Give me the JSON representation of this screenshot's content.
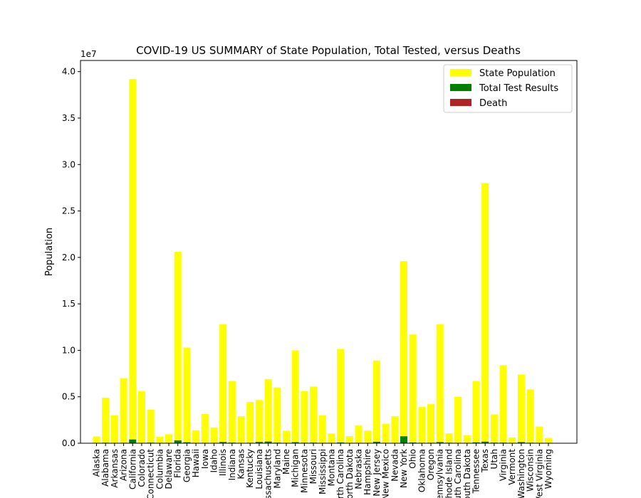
{
  "chart_data": {
    "type": "bar",
    "title": "COVID-19 US SUMMARY of State Population, Total Tested, versus Deaths",
    "xlabel": "",
    "ylabel": "Population",
    "y_offset_label": "1e7",
    "ylim": [
      0,
      41200000
    ],
    "yticks": [
      0,
      5000000,
      10000000,
      15000000,
      20000000,
      25000000,
      30000000,
      35000000,
      40000000
    ],
    "ytick_labels": [
      "0.0",
      "0.5",
      "1.0",
      "1.5",
      "2.0",
      "2.5",
      "3.0",
      "3.5",
      "4.0"
    ],
    "legend_position": "upper right",
    "categories": [
      "Alaska",
      "Alabama",
      "Arkansas",
      "Arizona",
      "California",
      "Colorado",
      "Connecticut",
      "Columbia",
      "Delaware",
      "Florida",
      "Georgia",
      "Hawaii",
      "Iowa",
      "Idaho",
      "Illinois",
      "Indiana",
      "Kansas",
      "Kentucky",
      "Louisiana",
      "Massachusetts",
      "Maryland",
      "Maine",
      "Michigan",
      "Minnesota",
      "Missouri",
      "Mississippi",
      "Montana",
      "North Carolina",
      "North Dakota",
      "Nebraska",
      "New Hampshire",
      "New Jersey",
      "New Mexico",
      "Nevada",
      "New York",
      "Ohio",
      "Oklahoma",
      "Oregon",
      "Pennsylvania",
      "Rhode Island",
      "South Carolina",
      "South Dakota",
      "Tennessee",
      "Texas",
      "Utah",
      "Virginia",
      "Vermont",
      "Washington",
      "Wisconsin",
      "West Virginia",
      "Wyoming"
    ],
    "series": [
      {
        "name": "State Population",
        "color": "#ffff00",
        "values": [
          730000,
          4900000,
          3000000,
          7000000,
          39200000,
          5600000,
          3600000,
          700000,
          970000,
          20600000,
          10300000,
          1400000,
          3150000,
          1700000,
          12800000,
          6700000,
          2900000,
          4450000,
          4650000,
          6900000,
          6000000,
          1340000,
          10000000,
          5600000,
          6100000,
          3000000,
          1050000,
          10150000,
          760000,
          1900000,
          1360000,
          8900000,
          2100000,
          2900000,
          19600000,
          11700000,
          3900000,
          4200000,
          12800000,
          1060000,
          5000000,
          880000,
          6700000,
          28000000,
          3100000,
          8400000,
          620000,
          7400000,
          5800000,
          1800000,
          580000
        ]
      },
      {
        "name": "Total Test Results",
        "color": "#008000",
        "values": [
          9000,
          50000,
          30000,
          45000,
          400000,
          40000,
          60000,
          10000,
          15000,
          310000,
          100000,
          25000,
          30000,
          20000,
          130000,
          60000,
          25000,
          45000,
          140000,
          180000,
          60000,
          15000,
          110000,
          50000,
          60000,
          25000,
          12000,
          80000,
          12000,
          25000,
          20000,
          160000,
          35000,
          30000,
          750000,
          80000,
          45000,
          50000,
          120000,
          50000,
          40000,
          12000,
          90000,
          170000,
          60000,
          60000,
          10000,
          120000,
          50000,
          30000,
          8000
        ]
      },
      {
        "name": "Death",
        "color": "#b22222",
        "values": [
          9,
          190,
          30,
          110,
          1000,
          400,
          1000,
          100,
          60,
          700,
          700,
          10,
          60,
          40,
          1200,
          450,
          80,
          180,
          1400,
          1900,
          400,
          30,
          2500,
          100,
          200,
          140,
          15,
          250,
          10,
          30,
          50,
          3800,
          30,
          150,
          16000,
          450,
          140,
          40,
          1100,
          100,
          100,
          6,
          110,
          450,
          20,
          250,
          30,
          550,
          150,
          10,
          0
        ]
      }
    ]
  }
}
